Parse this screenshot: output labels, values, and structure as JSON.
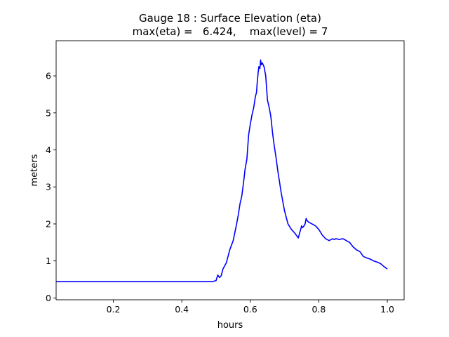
{
  "chart_data": {
    "type": "line",
    "title": "Gauge 18 : Surface Elevation (eta)",
    "subtitle": "max(eta) =   6.424,    max(level) = 7",
    "xlabel": "hours",
    "ylabel": "meters",
    "xlim": [
      0.033,
      1.049
    ],
    "ylim": [
      -0.05,
      6.95
    ],
    "xticks": [
      0.2,
      0.4,
      0.6,
      0.8,
      1.0
    ],
    "xtick_labels": [
      "0.2",
      "0.4",
      "0.6",
      "0.8",
      "1.0"
    ],
    "yticks": [
      0,
      1,
      2,
      3,
      4,
      5,
      6
    ],
    "ytick_labels": [
      "0",
      "1",
      "2",
      "3",
      "4",
      "5",
      "6"
    ],
    "grid": false,
    "line_color": "#0000ff",
    "series": [
      {
        "x": [
          0.033,
          0.49,
          0.5,
          0.505,
          0.51,
          0.515,
          0.52,
          0.53,
          0.54,
          0.55,
          0.56,
          0.565,
          0.57,
          0.575,
          0.58,
          0.585,
          0.59,
          0.595,
          0.6,
          0.605,
          0.61,
          0.615,
          0.618,
          0.62,
          0.623,
          0.625,
          0.628,
          0.63,
          0.632,
          0.635,
          0.64,
          0.645,
          0.65,
          0.655,
          0.66,
          0.665,
          0.67,
          0.675,
          0.68,
          0.69,
          0.7,
          0.71,
          0.72,
          0.73,
          0.74,
          0.75,
          0.752,
          0.755,
          0.76,
          0.763,
          0.765,
          0.77,
          0.78,
          0.79,
          0.8,
          0.81,
          0.82,
          0.83,
          0.84,
          0.845,
          0.85,
          0.86,
          0.87,
          0.875,
          0.88,
          0.89,
          0.9,
          0.91,
          0.92,
          0.93,
          0.94,
          0.95,
          0.96,
          0.97,
          0.98,
          0.99,
          1.0
        ],
        "y": [
          0.44,
          0.44,
          0.47,
          0.62,
          0.55,
          0.6,
          0.78,
          0.95,
          1.3,
          1.55,
          2.0,
          2.25,
          2.55,
          2.75,
          3.1,
          3.5,
          3.75,
          4.4,
          4.7,
          4.95,
          5.15,
          5.45,
          5.55,
          5.8,
          6.1,
          6.25,
          6.2,
          6.43,
          6.3,
          6.35,
          6.25,
          6.0,
          5.35,
          5.15,
          4.9,
          4.45,
          4.1,
          3.8,
          3.45,
          2.85,
          2.35,
          2.0,
          1.85,
          1.75,
          1.62,
          1.95,
          1.9,
          1.92,
          2.0,
          2.15,
          2.1,
          2.05,
          2.0,
          1.95,
          1.85,
          1.7,
          1.6,
          1.55,
          1.6,
          1.58,
          1.6,
          1.58,
          1.6,
          1.58,
          1.55,
          1.5,
          1.38,
          1.3,
          1.25,
          1.12,
          1.08,
          1.05,
          1.0,
          0.97,
          0.93,
          0.85,
          0.78
        ]
      }
    ]
  }
}
